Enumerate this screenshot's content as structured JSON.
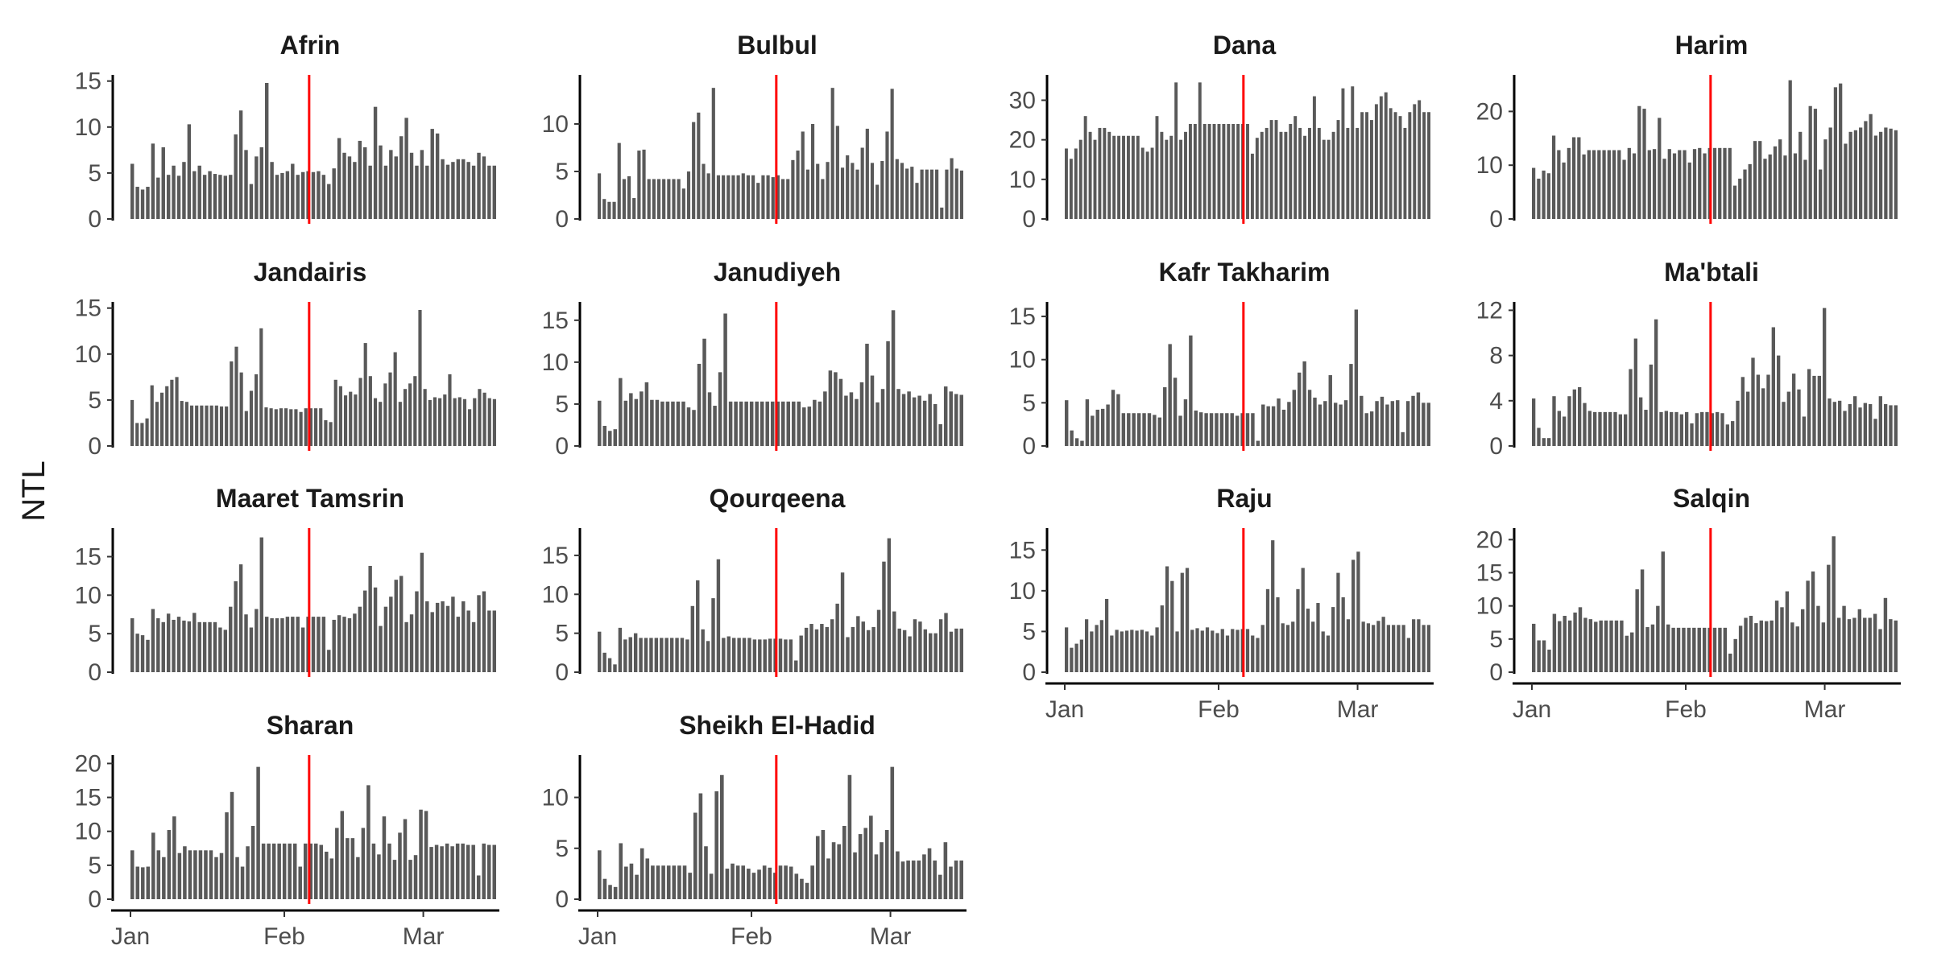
{
  "chart_data": {
    "type": "bar",
    "ylabel": "NTL",
    "xlabel": "",
    "x_start": "2023-01-01",
    "x_tick_labels": [
      "Jan",
      "Feb",
      "Mar"
    ],
    "event_date": "2023-02-06",
    "colors": {
      "bars": "#595959",
      "event_line": "#ff0000",
      "axis": "#000000"
    },
    "panels": [
      {
        "name": "Afrin",
        "yticks": [
          0,
          5,
          10,
          15
        ],
        "ylim": [
          0,
          15.5
        ],
        "values": [
          6,
          3.5,
          3.2,
          3.5,
          8.2,
          4.5,
          7.8,
          4.8,
          5.8,
          4.7,
          6.2,
          10.3,
          5.2,
          5.8,
          4.8,
          5.2,
          4.9,
          4.8,
          4.7,
          4.8,
          9.2,
          11.8,
          7.5,
          3.8,
          6.8,
          7.8,
          14.8,
          6.2,
          4.8,
          5,
          5.2,
          6,
          4.8,
          5.1,
          5.2,
          5.1,
          5.2,
          4.8,
          3.8,
          5.5,
          8.8,
          7.2,
          6.8,
          6.2,
          8.5,
          7.8,
          5.8,
          12.2,
          8,
          5.8,
          7.5,
          6.8,
          9,
          11,
          7.2,
          5.8,
          7.5,
          5.8,
          9.8,
          9.3,
          6.5,
          5.9,
          6.2,
          6.5,
          6.5,
          6.2,
          5.8,
          7.2,
          6.8,
          5.8,
          5.8
        ]
      },
      {
        "name": "Bulbul",
        "yticks": [
          0,
          5,
          10
        ],
        "ylim": [
          0,
          15
        ],
        "values": [
          4.8,
          2.1,
          1.8,
          1.8,
          8,
          4.2,
          4.5,
          2.2,
          7.2,
          7.3,
          4.2,
          4.2,
          4.2,
          4.2,
          4.2,
          4.2,
          4.2,
          3.2,
          5,
          10.2,
          11.2,
          5.8,
          4.8,
          13.8,
          4.6,
          4.6,
          4.6,
          4.6,
          4.6,
          4.8,
          4.6,
          4.6,
          3.8,
          4.6,
          4.6,
          4.4,
          4.6,
          4.2,
          4.2,
          6.2,
          7.2,
          9.2,
          5.2,
          10,
          5.8,
          4.2,
          6,
          13.8,
          9.8,
          5.4,
          6.7,
          5.9,
          5.2,
          7.5,
          9.5,
          5.9,
          3.6,
          6.1,
          9.2,
          13.7,
          6.3,
          5.9,
          5.3,
          5.5,
          3.8,
          5.2,
          5.2,
          5.2,
          5.2,
          1.2,
          5.2,
          6.4,
          5.3,
          5.1
        ]
      },
      {
        "name": "Dana",
        "yticks": [
          0,
          10,
          20,
          30
        ],
        "ylim": [
          0,
          36
        ],
        "values": [
          17.8,
          15.2,
          17.8,
          20,
          26,
          22,
          20,
          23,
          23,
          22,
          21,
          21,
          21,
          21,
          21,
          21,
          18,
          17,
          18,
          26,
          22,
          20,
          21,
          34.5,
          20,
          22,
          24,
          24,
          34.5,
          24,
          24,
          24,
          24,
          24,
          24,
          24,
          24,
          24,
          24,
          16.5,
          20.5,
          22,
          23,
          25,
          25,
          22,
          22,
          24,
          26,
          23,
          21,
          23,
          31,
          23,
          20,
          20,
          22,
          25,
          33,
          23,
          33.5,
          23,
          27,
          27,
          25,
          29,
          31,
          32,
          28,
          27,
          26,
          23,
          27,
          29,
          30,
          27,
          27
        ]
      },
      {
        "name": "Harim",
        "yticks": [
          0,
          10,
          20
        ],
        "ylim": [
          0,
          26.5
        ],
        "values": [
          9.5,
          7.5,
          9,
          8.5,
          15.5,
          12.8,
          10.5,
          13.2,
          15.2,
          15.2,
          12,
          12.8,
          12.8,
          12.8,
          12.8,
          12.8,
          12.8,
          12.8,
          11,
          13.2,
          12.2,
          21,
          20.5,
          12.8,
          13,
          18.8,
          11.2,
          13,
          12.2,
          12.8,
          12.8,
          10.5,
          13,
          13.2,
          12.2,
          13.2,
          13.2,
          13.2,
          13.2,
          13.2,
          6.2,
          7.5,
          9.2,
          10.2,
          14.5,
          14.5,
          11.2,
          12,
          13.5,
          14.8,
          11.8,
          25.8,
          12.2,
          16.2,
          11,
          21,
          20.5,
          9.2,
          14.8,
          17,
          24.5,
          25.2,
          14,
          16.2,
          16.5,
          17,
          18.2,
          19.5,
          15.5,
          16.2,
          17,
          16.8,
          16.5
        ]
      },
      {
        "name": "Jandairis",
        "yticks": [
          0,
          5,
          10,
          15
        ],
        "ylim": [
          0,
          15.5
        ],
        "values": [
          5,
          2.5,
          2.5,
          3,
          6.6,
          4.8,
          5.8,
          6.5,
          7.2,
          7.5,
          4.9,
          4.8,
          4.4,
          4.4,
          4.4,
          4.4,
          4.4,
          4.4,
          4.3,
          4.3,
          9.2,
          10.8,
          8,
          3.8,
          6,
          7.8,
          12.8,
          4.2,
          4.1,
          4,
          4.1,
          4.1,
          4,
          4,
          3.7,
          4.1,
          4.1,
          4.1,
          4.1,
          2.8,
          2.6,
          7.2,
          6.5,
          5.5,
          5.9,
          5.6,
          7.4,
          11.2,
          7.6,
          5.2,
          4.8,
          6.8,
          8,
          10.2,
          4.8,
          6.2,
          6.8,
          7.6,
          14.8,
          6.2,
          5,
          5.3,
          5.2,
          5.6,
          7.8,
          5.2,
          5.3,
          5.1,
          4,
          5.2,
          6.2,
          5.8,
          5.2,
          5.1
        ]
      },
      {
        "name": "Janudiyeh",
        "yticks": [
          0,
          5,
          10,
          15
        ],
        "ylim": [
          0,
          17
        ],
        "values": [
          5.4,
          2.4,
          1.8,
          2,
          8.1,
          5.4,
          6.3,
          5.6,
          6.5,
          7.6,
          5.5,
          5.5,
          5.3,
          5.3,
          5.3,
          5.3,
          5.3,
          4.6,
          4.3,
          9.8,
          12.8,
          6.4,
          4.8,
          8.8,
          15.8,
          5.3,
          5.3,
          5.3,
          5.3,
          5.3,
          5.3,
          5.3,
          5.3,
          5.3,
          5.3,
          5.3,
          5.3,
          5.3,
          5.3,
          4.6,
          4.7,
          5.5,
          5.3,
          6.5,
          9,
          8.8,
          8,
          6,
          6.4,
          5.6,
          7.6,
          12.2,
          8.4,
          5.2,
          6.8,
          12.5,
          16.2,
          6.8,
          6.2,
          6.5,
          5.8,
          6,
          5.4,
          6.2,
          5,
          2.6,
          7.1,
          6.5,
          6.2,
          6.1
        ]
      },
      {
        "name": "Kafr Takharim",
        "yticks": [
          0,
          5,
          10,
          15
        ],
        "ylim": [
          0,
          16.5
        ],
        "values": [
          5.3,
          1.8,
          0.9,
          0.6,
          5.4,
          3.5,
          4.2,
          4.3,
          4.8,
          6.5,
          6,
          3.8,
          3.8,
          3.8,
          3.8,
          3.8,
          3.8,
          3.6,
          3.3,
          6.8,
          11.8,
          7.9,
          3.5,
          5.4,
          12.8,
          4.1,
          3.9,
          3.8,
          3.8,
          3.8,
          3.8,
          3.8,
          3.8,
          3.5,
          3.8,
          3.8,
          3.8,
          0.6,
          4.8,
          4.6,
          4.6,
          5.5,
          4.2,
          5.1,
          6.5,
          8.5,
          9.8,
          6.5,
          5.6,
          4.8,
          5.2,
          8.2,
          5,
          4.8,
          5.3,
          9.5,
          15.8,
          5.8,
          3.8,
          4,
          5.2,
          5.7,
          4.8,
          5.2,
          5.3,
          1.6,
          5.2,
          5.8,
          6.2,
          5,
          5
        ]
      },
      {
        "name": "Ma'btali",
        "yticks": [
          0,
          4,
          8,
          12
        ],
        "ylim": [
          0,
          12.6
        ],
        "values": [
          4.2,
          1.6,
          0.7,
          0.7,
          4.4,
          3.1,
          2.6,
          4.4,
          5,
          5.2,
          3.8,
          3.1,
          3,
          3,
          3,
          3,
          3,
          2.8,
          2.8,
          6.8,
          9.5,
          4.3,
          3.2,
          7.2,
          11.2,
          3,
          3.1,
          3,
          3,
          2.8,
          3,
          2,
          2.9,
          3,
          3,
          2.9,
          3,
          2.9,
          1.9,
          2.2,
          4,
          6.1,
          4.8,
          7.8,
          6.3,
          5.1,
          6.3,
          10.5,
          8,
          3.9,
          4.8,
          6.4,
          5,
          2.6,
          6.8,
          6.2,
          6.2,
          12.2,
          4.2,
          3.9,
          4,
          3.1,
          3.7,
          4.4,
          3.4,
          3.8,
          3.7,
          2.4,
          4.4,
          3.7,
          3.6,
          3.6
        ]
      },
      {
        "name": "Maaret Tamsrin",
        "yticks": [
          0,
          5,
          10,
          15
        ],
        "ylim": [
          0,
          18.5
        ],
        "values": [
          7,
          5,
          4.8,
          4.2,
          8.2,
          7,
          6.5,
          7.6,
          6.8,
          7.2,
          6.7,
          6.6,
          7.7,
          6.5,
          6.5,
          6.5,
          6.5,
          5.8,
          5.5,
          8.5,
          11.8,
          14,
          7.5,
          5.8,
          8.2,
          17.5,
          7.2,
          7,
          7,
          7,
          7.2,
          7.2,
          7.2,
          5.8,
          7.2,
          7.2,
          7.2,
          7.2,
          2.9,
          6.8,
          7.4,
          7.2,
          7,
          7.6,
          8.5,
          10.6,
          13.8,
          11,
          6,
          8.5,
          9.8,
          12,
          12.5,
          6.5,
          7.5,
          10.5,
          15.5,
          9.2,
          7.8,
          9,
          9.2,
          8.6,
          9.8,
          7.2,
          9.2,
          8,
          6.5,
          10,
          10.5,
          8,
          8
        ]
      },
      {
        "name": "Qourqeena",
        "yticks": [
          0,
          5,
          10,
          15
        ],
        "ylim": [
          0,
          18.3
        ],
        "values": [
          5.2,
          2.5,
          1.8,
          1,
          5.7,
          4.2,
          4.5,
          5,
          4.4,
          4.4,
          4.4,
          4.4,
          4.4,
          4.4,
          4.4,
          4.4,
          4.4,
          4.2,
          8.5,
          11.8,
          5.5,
          4,
          9.5,
          14.5,
          4.4,
          4.6,
          4.4,
          4.4,
          4.4,
          4.4,
          4.2,
          4.2,
          4.2,
          4.3,
          4.3,
          4.3,
          4.2,
          4.2,
          1.5,
          4.7,
          5.7,
          6.2,
          5.5,
          6.2,
          5.8,
          6.8,
          8.8,
          12.8,
          4.5,
          5.8,
          7.2,
          6.5,
          5.4,
          5.8,
          8,
          14.2,
          17.2,
          7.8,
          5.6,
          5.4,
          4.6,
          6.8,
          6.5,
          5.5,
          5,
          5,
          6.8,
          7.6,
          5.2,
          5.6,
          5.6
        ]
      },
      {
        "name": "Raju",
        "yticks": [
          0,
          5,
          10,
          15
        ],
        "ylim": [
          0,
          17.5
        ],
        "values": [
          5.5,
          3,
          3.5,
          4,
          6.5,
          5,
          5.8,
          6.4,
          9,
          4.5,
          5.2,
          5,
          5.1,
          5.2,
          5.1,
          5.2,
          5,
          4.5,
          5.5,
          8.2,
          13,
          11.2,
          5,
          12.2,
          12.8,
          5.2,
          5.4,
          5.1,
          5.5,
          5.1,
          4.8,
          5.3,
          4.5,
          5.3,
          5.2,
          5.3,
          5.3,
          4.5,
          4.2,
          5.8,
          10.2,
          16.2,
          9.2,
          6,
          5.8,
          6.2,
          10.2,
          12.8,
          7.8,
          6.2,
          8.5,
          5,
          4.5,
          8,
          12.2,
          9.2,
          6.5,
          13.8,
          14.8,
          6.2,
          6,
          5.8,
          6.3,
          6.8,
          5.8,
          5.8,
          5.8,
          5.8,
          4.2,
          6.5,
          6.5,
          5.8,
          5.8
        ]
      },
      {
        "name": "Salqin",
        "yticks": [
          0,
          5,
          10,
          15,
          20
        ],
        "ylim": [
          0,
          21.5
        ],
        "values": [
          7.3,
          4.8,
          4.8,
          3.4,
          8.8,
          7.7,
          8.5,
          7.8,
          9,
          9.8,
          8.2,
          8,
          7.6,
          7.8,
          7.8,
          7.8,
          7.8,
          7.8,
          5.5,
          6,
          12.5,
          15.5,
          6.8,
          7.2,
          10,
          18.2,
          7.2,
          6.7,
          6.7,
          6.7,
          6.7,
          6.7,
          6.7,
          6.7,
          6.7,
          6.7,
          6.7,
          6.7,
          2.8,
          5,
          7,
          8.2,
          8.5,
          7.4,
          7.8,
          7.7,
          7.8,
          10.8,
          9.8,
          12.2,
          7.5,
          6.9,
          9.5,
          13.8,
          15.2,
          10,
          7.5,
          16.2,
          20.5,
          8.2,
          10,
          8,
          8.2,
          9.5,
          8.2,
          8.2,
          8.8,
          6.5,
          11.2,
          8,
          7.8
        ]
      },
      {
        "name": "Sharan",
        "yticks": [
          0,
          5,
          10,
          15,
          20
        ],
        "ylim": [
          0,
          21
        ],
        "values": [
          7.2,
          4.8,
          4.7,
          4.8,
          9.8,
          7.2,
          6.2,
          10.2,
          12.2,
          6.8,
          7.8,
          7.2,
          7.2,
          7.2,
          7.2,
          7.2,
          6.2,
          6.8,
          12.8,
          15.8,
          6.2,
          4.8,
          7.8,
          10.8,
          19.5,
          8.2,
          8.2,
          8.2,
          8.2,
          8.2,
          8.2,
          8.2,
          4.8,
          8.2,
          8.2,
          8.2,
          8,
          7,
          6,
          10.5,
          13,
          9,
          9,
          6.2,
          10.5,
          16.8,
          8.2,
          6.6,
          12.2,
          8.2,
          5.8,
          9.8,
          11.8,
          5.8,
          6.5,
          13.2,
          13,
          7.7,
          8,
          7.8,
          8.2,
          7.8,
          8.2,
          8.2,
          8,
          8,
          3.5,
          8.2,
          8,
          8
        ]
      },
      {
        "name": "Sheikh El-Hadid",
        "yticks": [
          0,
          5,
          10
        ],
        "ylim": [
          0,
          14
        ],
        "values": [
          4.8,
          2,
          1.4,
          1.2,
          5.5,
          3.2,
          3.5,
          2.4,
          5,
          4,
          3.3,
          3.3,
          3.3,
          3.3,
          3.3,
          3.3,
          3.3,
          2.6,
          8.5,
          10.4,
          5.2,
          2.5,
          10.6,
          12.2,
          3,
          3.5,
          3.3,
          3.3,
          3,
          2.6,
          2.9,
          3.3,
          3.1,
          2.6,
          3.3,
          3.3,
          3.2,
          2.5,
          2,
          1.6,
          3.3,
          6.2,
          6.8,
          4,
          5.6,
          5.4,
          7.2,
          12.2,
          4.6,
          6.4,
          7,
          8.2,
          4.4,
          5.6,
          6.8,
          13,
          4.7,
          3.7,
          3.8,
          3.8,
          3.8,
          4.4,
          5,
          3.8,
          2.4,
          5.6,
          3.2,
          3.8,
          3.8
        ]
      }
    ]
  }
}
